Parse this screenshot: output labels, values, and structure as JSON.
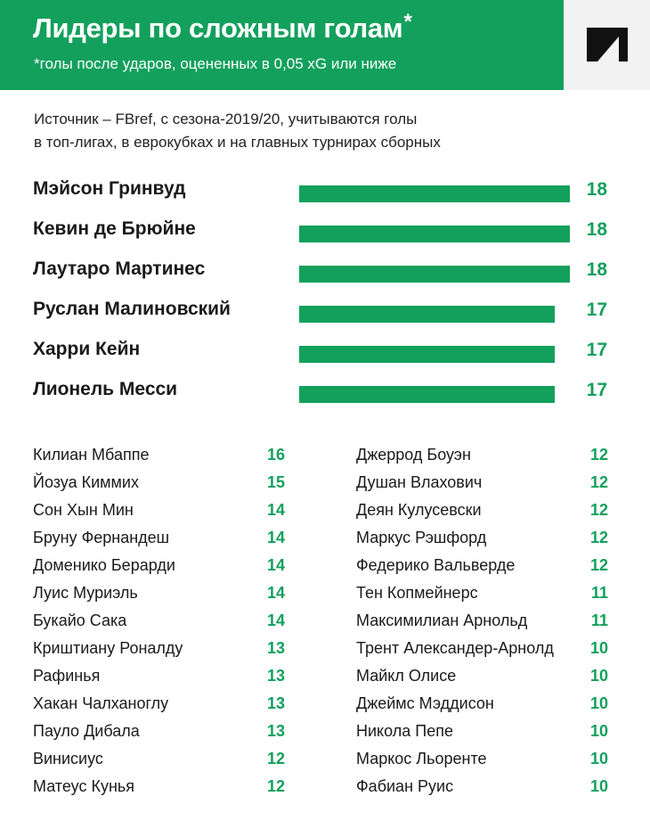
{
  "header": {
    "title": "Лидеры по сложным голам",
    "title_mark": "*",
    "subtitle": "*голы после ударов, оцененных в 0,05 xG или ниже"
  },
  "note": {
    "line1": "Источник – FBref, с сезона-2019/20, учитываются голы",
    "line2": "в топ-лигах, в еврокубках и на главных турнирах сборных"
  },
  "colors": {
    "accent": "#12a05c",
    "logo_background": "#f2f2f2"
  },
  "logo": {
    "icon": "brand-logo-icon"
  },
  "chart_data": [
    {
      "type": "bar",
      "orientation": "horizontal",
      "categories": [
        "Мэйсон Гринвуд",
        "Кевин де Брюйне",
        "Лаутаро Мартинес",
        "Руслан Малиновский",
        "Харри Кейн",
        "Лионель Месси"
      ],
      "values": [
        18,
        18,
        18,
        17,
        17,
        17
      ],
      "xlim": [
        0,
        18
      ],
      "grid": false,
      "legend": "none"
    },
    {
      "type": "table",
      "columns": [
        [
          {
            "name": "Килиан Мбаппе",
            "value": 16
          },
          {
            "name": "Йозуа Киммих",
            "value": 15
          },
          {
            "name": "Сон Хын Мин",
            "value": 14
          },
          {
            "name": "Бруну Фернандеш",
            "value": 14
          },
          {
            "name": "Доменико Берарди",
            "value": 14
          },
          {
            "name": "Луис Муриэль",
            "value": 14
          },
          {
            "name": "Букайо Сака",
            "value": 14
          },
          {
            "name": "Криштиану Роналду",
            "value": 13
          },
          {
            "name": "Рафинья",
            "value": 13
          },
          {
            "name": "Хакан Чалханоглу",
            "value": 13
          },
          {
            "name": "Пауло Дибала",
            "value": 13
          },
          {
            "name": "Винисиус",
            "value": 12
          },
          {
            "name": "Матеус Кунья",
            "value": 12
          }
        ],
        [
          {
            "name": "Джеррод Боуэн",
            "value": 12
          },
          {
            "name": "Душан Влахович",
            "value": 12
          },
          {
            "name": "Деян Кулусевски",
            "value": 12
          },
          {
            "name": "Маркус Рэшфорд",
            "value": 12
          },
          {
            "name": "Федерико Вальверде",
            "value": 12
          },
          {
            "name": "Тен Копмейнерс",
            "value": 11
          },
          {
            "name": "Максимилиан Арнольд",
            "value": 11
          },
          {
            "name": "Трент Александер-Арнолд",
            "value": 10
          },
          {
            "name": "Майкл Олисе",
            "value": 10
          },
          {
            "name": "Джеймс Мэддисон",
            "value": 10
          },
          {
            "name": "Никола Пепе",
            "value": 10
          },
          {
            "name": "Маркос Льоренте",
            "value": 10
          },
          {
            "name": "Фабиан Руис",
            "value": 10
          }
        ]
      ]
    }
  ]
}
